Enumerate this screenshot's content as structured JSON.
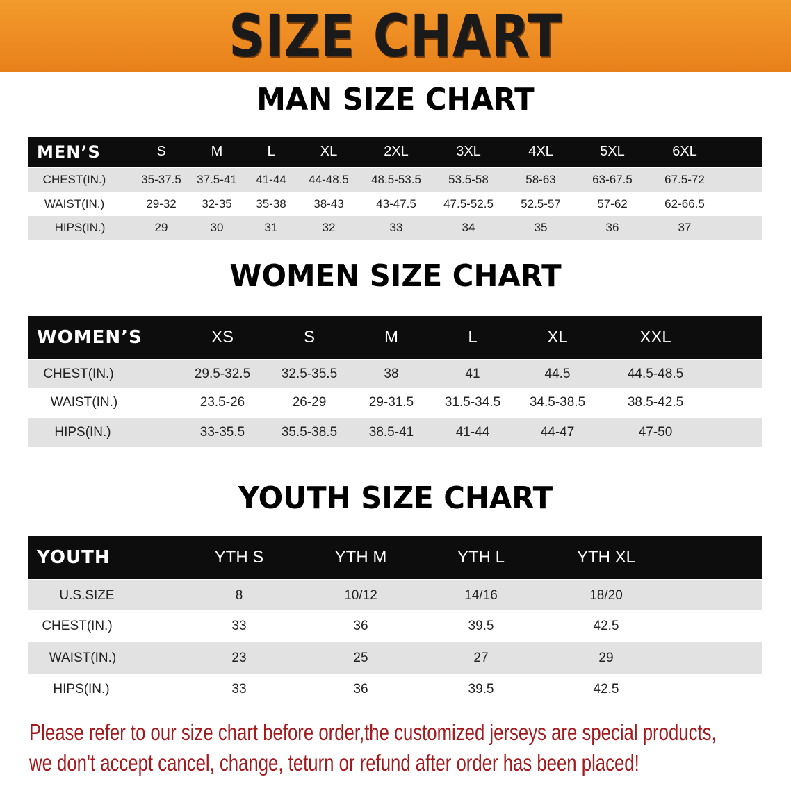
{
  "banner_title": "SIZE CHART",
  "men": {
    "title": "MAN SIZE CHART",
    "header": [
      "MEN’S",
      "S",
      "M",
      "L",
      "XL",
      "2XL",
      "3XL",
      "4XL",
      "5XL",
      "6XL"
    ],
    "rows": [
      [
        "CHEST(IN.)",
        "35-37.5",
        "37.5-41",
        "41-44",
        "44-48.5",
        "48.5-53.5",
        "53.5-58",
        "58-63",
        "63-67.5",
        "67.5-72"
      ],
      [
        "WAIST(IN.)",
        "29-32",
        "32-35",
        "35-38",
        "38-43",
        "43-47.5",
        "47.5-52.5",
        "52.5-57",
        "57-62",
        "62-66.5"
      ],
      [
        "HIPS(IN.)",
        "29",
        "30",
        "31",
        "32",
        "33",
        "34",
        "35",
        "36",
        "37"
      ]
    ]
  },
  "women": {
    "title": "WOMEN SIZE CHART",
    "header": [
      "WOMEN’S",
      "XS",
      "S",
      "M",
      "L",
      "XL",
      "XXL"
    ],
    "rows": [
      [
        "CHEST(IN.)",
        "29.5-32.5",
        "32.5-35.5",
        "38",
        "41",
        "44.5",
        "44.5-48.5"
      ],
      [
        "WAIST(IN.)",
        "23.5-26",
        "26-29",
        "29-31.5",
        "31.5-34.5",
        "34.5-38.5",
        "38.5-42.5"
      ],
      [
        "HIPS(IN.)",
        "33-35.5",
        "35.5-38.5",
        "38.5-41",
        "41-44",
        "44-47",
        "47-50"
      ]
    ]
  },
  "youth": {
    "title": "YOUTH SIZE CHART",
    "header": [
      "YOUTH",
      "YTH S",
      "YTH M",
      "YTH L",
      "YTH XL"
    ],
    "rows": [
      [
        "U.S.SIZE",
        "8",
        "10/12",
        "14/16",
        "18/20"
      ],
      [
        "CHEST(IN.)",
        "33",
        "36",
        "39.5",
        "42.5"
      ],
      [
        "WAIST(IN.)",
        "23",
        "25",
        "27",
        "29"
      ],
      [
        "HIPS(IN.)",
        "33",
        "36",
        "39.5",
        "42.5"
      ]
    ]
  },
  "notice": [
    "Please refer to our size chart before order,the customized jerseys are special products,",
    "we don't accept cancel, change, teturn or refund after order has been placed!"
  ],
  "colors": {
    "banner": "#ee8a22",
    "header_row": "#0d0d0d",
    "stripe": "#e2e2e2",
    "notice": "#a3191c"
  }
}
